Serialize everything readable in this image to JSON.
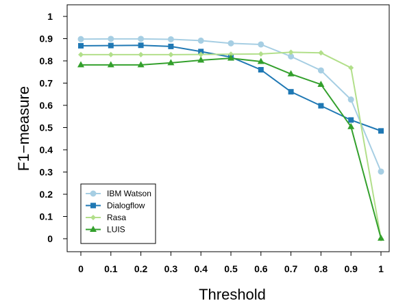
{
  "chart_data": {
    "type": "line",
    "xlabel": "Threshold",
    "ylabel": "F1−measure",
    "x": [
      0,
      0.1,
      0.2,
      0.3,
      0.4,
      0.5,
      0.6,
      0.7,
      0.8,
      0.9,
      1
    ],
    "x_tick_labels": [
      "0",
      "0.1",
      "0.2",
      "0.3",
      "0.4",
      "0.5",
      "0.6",
      "0.7",
      "0.8",
      "0.9",
      "1"
    ],
    "y_ticks": [
      0,
      0.1,
      0.2,
      0.3,
      0.4,
      0.5,
      0.6,
      0.7,
      0.8,
      0.9,
      1
    ],
    "y_tick_labels": [
      "0",
      "0.1",
      "0.2",
      "0.3",
      "0.4",
      "0.5",
      "0.6",
      "0.7",
      "0.8",
      "0.9",
      "1"
    ],
    "xlim": [
      0,
      1
    ],
    "ylim": [
      0,
      1
    ],
    "grid": false,
    "legend_position": "bottom-left",
    "series": [
      {
        "name": "IBM Watson",
        "color": "#a6cee3",
        "marker": "circle",
        "values": [
          0.898,
          0.899,
          0.899,
          0.897,
          0.891,
          0.879,
          0.874,
          0.82,
          0.757,
          0.626,
          0.302
        ]
      },
      {
        "name": "Dialogflow",
        "color": "#1f78b4",
        "marker": "square",
        "values": [
          0.868,
          0.869,
          0.87,
          0.865,
          0.842,
          0.817,
          0.76,
          0.661,
          0.598,
          0.534,
          0.485
        ]
      },
      {
        "name": "Rasa",
        "color": "#b2df8a",
        "marker": "diamond",
        "values": [
          0.828,
          0.828,
          0.828,
          0.828,
          0.829,
          0.83,
          0.831,
          0.839,
          0.836,
          0.769,
          0.0
        ]
      },
      {
        "name": "LUIS",
        "color": "#33a02c",
        "marker": "triangle",
        "values": [
          0.782,
          0.782,
          0.782,
          0.791,
          0.803,
          0.812,
          0.797,
          0.741,
          0.694,
          0.504,
          0.002
        ]
      }
    ]
  }
}
